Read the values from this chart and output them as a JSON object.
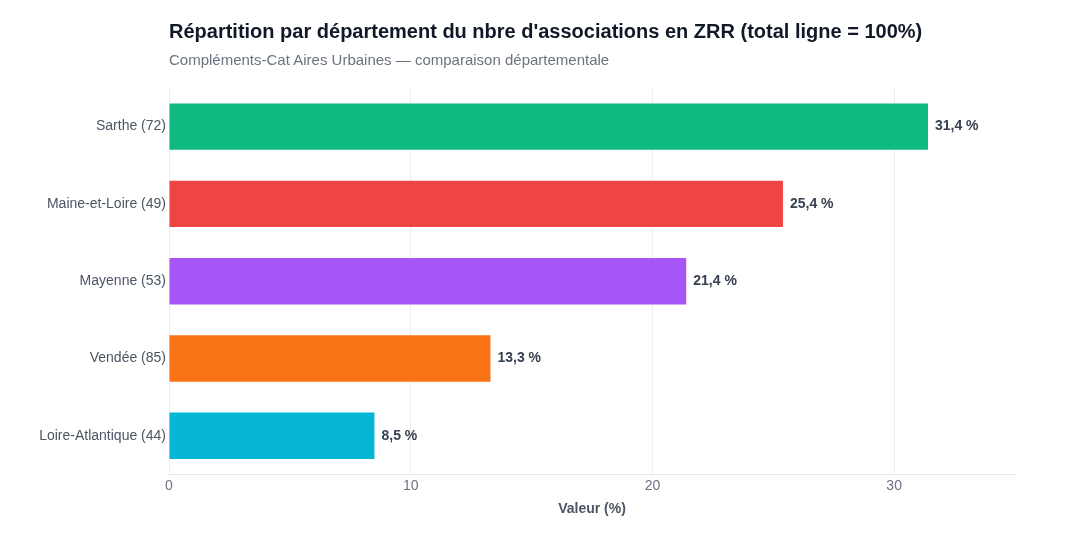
{
  "chart_data": {
    "type": "bar",
    "orientation": "horizontal",
    "title": "Répartition par département du nbre d'associations en ZRR (total ligne = 100%)",
    "subtitle": "Compléments-Cat Aires Urbaines — comparaison départementale",
    "categories": [
      "Sarthe (72)",
      "Maine-et-Loire (49)",
      "Mayenne (53)",
      "Vendée (85)",
      "Loire-Atlantique (44)"
    ],
    "values": [
      31.4,
      25.4,
      21.4,
      13.3,
      8.5
    ],
    "colors": [
      "#10b981",
      "#ef4444",
      "#a855f7",
      "#f97316",
      "#06b6d4"
    ],
    "value_labels": [
      "31,4 %",
      "25,4 %",
      "21,4 %",
      "13,3 %",
      "8,5 %"
    ],
    "xlabel": "Valeur (%)",
    "xlim": [
      0,
      35
    ],
    "xticks": [
      0,
      10,
      20,
      30
    ],
    "grid": "x"
  }
}
